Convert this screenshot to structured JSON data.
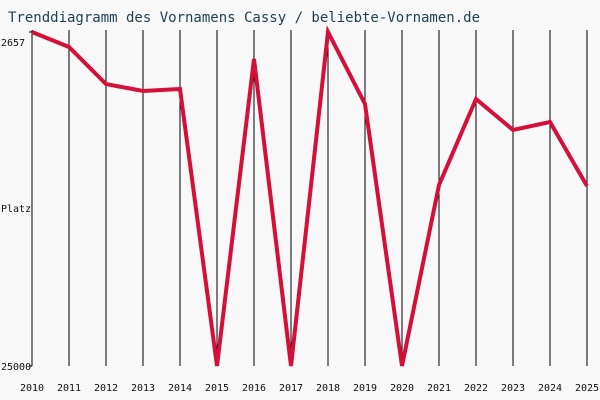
{
  "chart_data": {
    "type": "line",
    "title": "Trenddiagramm des Vornamens Cassy / beliebte-Vornamen.de",
    "y_label": "Platz",
    "x": [
      2010,
      2011,
      2012,
      2013,
      2014,
      2015,
      2016,
      2017,
      2018,
      2019,
      2020,
      2021,
      2022,
      2023,
      2024,
      2025
    ],
    "series": [
      {
        "name": "Cassy",
        "color": "#d4103a",
        "values": [
          2657,
          3660,
          6140,
          6600,
          6470,
          25000,
          4460,
          25000,
          2657,
          7470,
          25000,
          12890,
          7140,
          9210,
          8680,
          12960
        ]
      }
    ],
    "xlim": [
      2010,
      2025
    ],
    "xticks": [
      2010,
      2011,
      2012,
      2013,
      2014,
      2015,
      2016,
      2017,
      2018,
      2019,
      2020,
      2021,
      2022,
      2023,
      2024,
      2025
    ],
    "ylim": [
      25000,
      2657
    ],
    "yticks": [
      2657,
      25000
    ],
    "grid": "x"
  }
}
